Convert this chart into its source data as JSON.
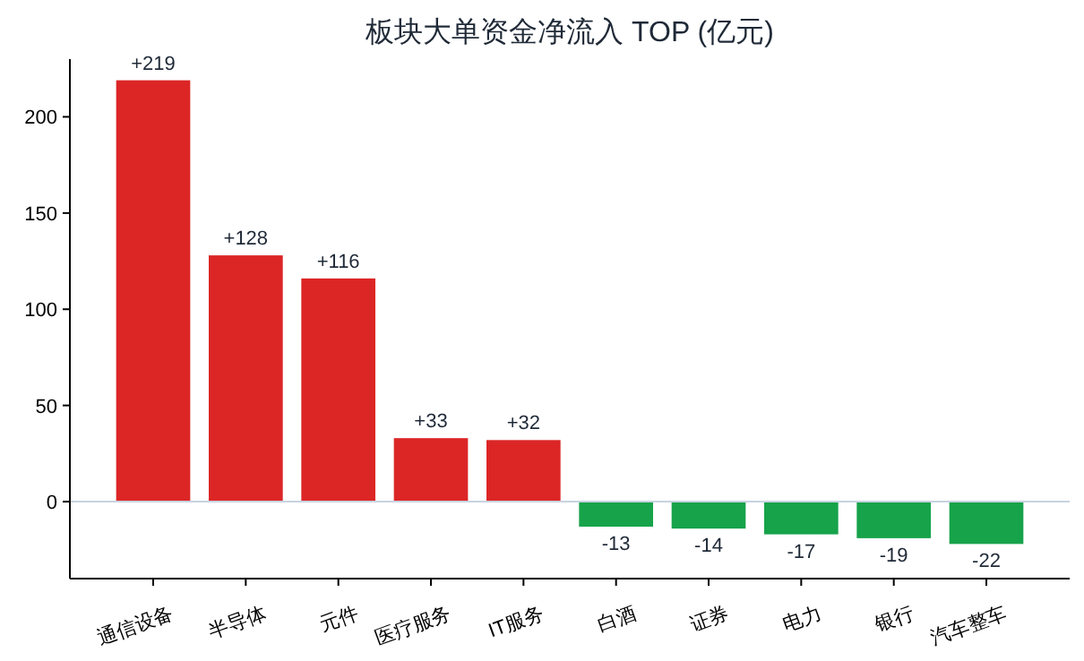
{
  "chart_data": {
    "type": "bar",
    "title": "板块大单资金净流入 TOP (亿元)",
    "categories": [
      "通信设备",
      "半导体",
      "元件",
      "医疗服务",
      "IT服务",
      "白酒",
      "证券",
      "电力",
      "银行",
      "汽车整车"
    ],
    "values": [
      219,
      128,
      116,
      33,
      32,
      -13,
      -14,
      -17,
      -19,
      -22
    ],
    "colors": [
      "#dc2626",
      "#dc2626",
      "#dc2626",
      "#dc2626",
      "#dc2626",
      "#16a34a",
      "#16a34a",
      "#16a34a",
      "#16a34a",
      "#16a34a"
    ],
    "value_labels": [
      "+219",
      "+128",
      "+116",
      "+33",
      "+32",
      "-13",
      "-14",
      "-17",
      "-19",
      "-22"
    ],
    "ylim": [
      -40,
      230
    ],
    "yticks": [
      0,
      50,
      100,
      150,
      200
    ],
    "ref_lines": [
      {
        "axis": "y",
        "value": 0,
        "color": "#c8d3e0"
      }
    ],
    "grid": false
  }
}
